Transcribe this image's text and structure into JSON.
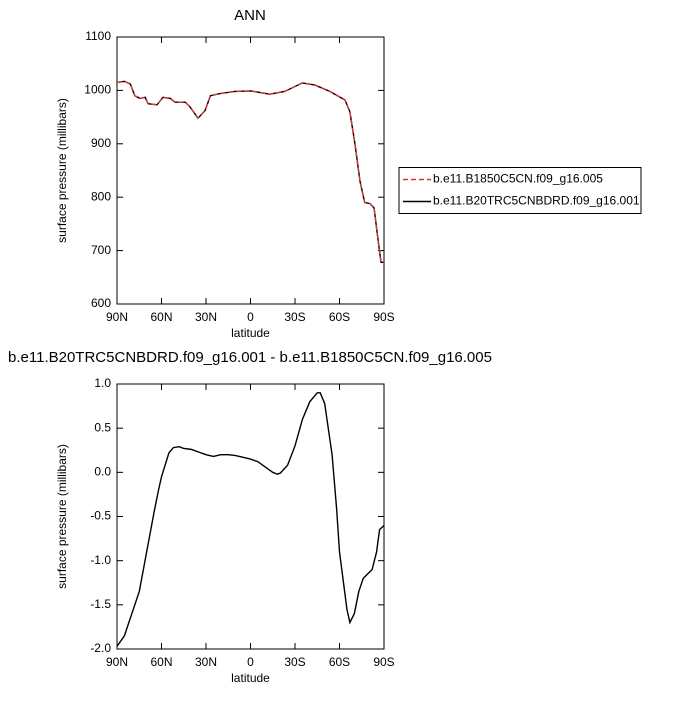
{
  "chart_data": [
    {
      "type": "line",
      "title": "ANN",
      "x_label": "latitude",
      "y_label": "surface pressure (millibars)",
      "x": [
        90,
        85,
        81,
        78,
        74.5,
        71,
        69,
        63,
        59,
        54,
        51,
        44,
        41,
        35.4,
        30.7,
        27,
        20.6,
        10.5,
        0,
        -13,
        -23,
        -35,
        -43.5,
        -53.6,
        -63.7,
        -67,
        -70.4,
        -73.8,
        -77,
        -80.6,
        -83.3,
        -86,
        -88,
        -90
      ],
      "series": [
        {
          "name": "b.e11.B1850C5CN.f09_g16.005",
          "color": "#e0303a",
          "dash": true,
          "values": [
            1015,
            1017,
            1012,
            990,
            985,
            987,
            975,
            973,
            987,
            985,
            978,
            978,
            970,
            948,
            962,
            990,
            994,
            998,
            999,
            993,
            998,
            1014,
            1010,
            998,
            982,
            960,
            900,
            830,
            790,
            788,
            780,
            720,
            678,
            678
          ]
        },
        {
          "name": "b.e11.B20TRC5CNBDRD.f09_g16.001",
          "color": "#000000",
          "dash": false,
          "values": [
            1015,
            1017,
            1012,
            990,
            985,
            987,
            975,
            973,
            987,
            985,
            978,
            978,
            970,
            948,
            962,
            990,
            994,
            998,
            999,
            993,
            998,
            1014,
            1010,
            998,
            982,
            960,
            900,
            830,
            790,
            788,
            780,
            720,
            678,
            678
          ]
        }
      ],
      "xlim": [
        90,
        -90
      ],
      "xticks": [
        {
          "value": 90,
          "label": "90N"
        },
        {
          "value": 60,
          "label": "60N"
        },
        {
          "value": 30,
          "label": "30N"
        },
        0,
        {
          "value": -30,
          "label": "30S"
        },
        {
          "value": -60,
          "label": "60S"
        },
        {
          "value": -90,
          "label": "90S"
        }
      ],
      "ylim": [
        600,
        1100
      ],
      "yticks": [
        600,
        700,
        800,
        900,
        1000,
        1100
      ],
      "legend": "right"
    },
    {
      "type": "line",
      "title": "b.e11.B20TRC5CNBDRD.f09_g16.001 - b.e11.B1850C5CN.f09_g16.005",
      "x_label": "latitude",
      "y_label": "surface pressure (millibars)",
      "x": [
        90,
        85,
        80,
        75,
        70,
        65,
        62,
        60,
        55,
        52,
        48,
        45,
        40,
        35,
        30,
        25,
        20,
        15,
        10,
        5,
        0,
        -5,
        -10,
        -15,
        -18,
        -20,
        -25,
        -30,
        -35,
        -40,
        -45,
        -47,
        -50,
        -55,
        -58,
        -60,
        -65,
        -67,
        -70,
        -73,
        -76,
        -79,
        -82,
        -85,
        -87,
        -90
      ],
      "series": [
        {
          "color": "#000000",
          "dash": false,
          "values": [
            -1.97,
            -1.85,
            -1.6,
            -1.35,
            -0.9,
            -0.45,
            -0.2,
            -0.05,
            0.22,
            0.28,
            0.29,
            0.27,
            0.26,
            0.23,
            0.2,
            0.18,
            0.2,
            0.2,
            0.19,
            0.17,
            0.15,
            0.12,
            0.06,
            0.0,
            -0.02,
            -0.01,
            0.08,
            0.3,
            0.6,
            0.8,
            0.9,
            0.9,
            0.78,
            0.2,
            -0.4,
            -0.9,
            -1.55,
            -1.7,
            -1.6,
            -1.35,
            -1.2,
            -1.15,
            -1.1,
            -0.9,
            -0.65,
            -0.6
          ]
        }
      ],
      "xlim": [
        90,
        -90
      ],
      "xticks": [
        {
          "value": 90,
          "label": "90N"
        },
        {
          "value": 60,
          "label": "60N"
        },
        {
          "value": 30,
          "label": "30N"
        },
        0,
        {
          "value": -30,
          "label": "30S"
        },
        {
          "value": -60,
          "label": "60S"
        },
        {
          "value": -90,
          "label": "90S"
        }
      ],
      "ylim": [
        -2,
        1
      ],
      "yticks": [
        {
          "value": -2,
          "label": "-2.0"
        },
        -1.5,
        {
          "value": -1,
          "label": "-1.0"
        },
        -0.5,
        {
          "value": 0,
          "label": "0.0"
        },
        0.5,
        {
          "value": 1,
          "label": "1.0"
        }
      ]
    }
  ]
}
